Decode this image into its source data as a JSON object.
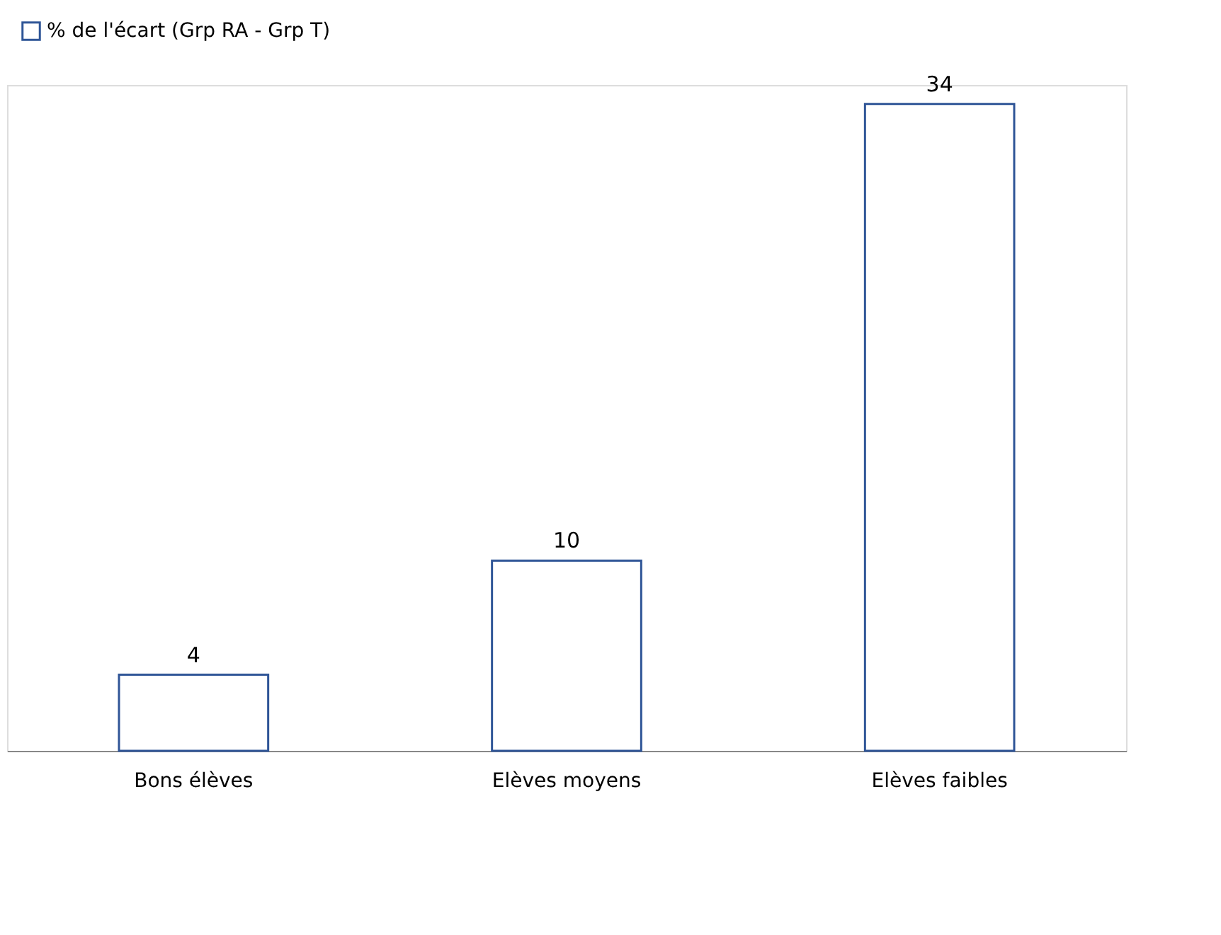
{
  "chart_data": {
    "type": "bar",
    "categories": [
      "Bons élèves",
      "Elèves moyens",
      "Elèves faibles"
    ],
    "series": [
      {
        "name": "% de l'écart (Grp RA - Grp T)",
        "color": "#2f5597",
        "values": [
          4,
          10,
          34
        ]
      }
    ],
    "data_labels": true,
    "legend": "top",
    "grid": false,
    "tick_labels": "x"
  }
}
